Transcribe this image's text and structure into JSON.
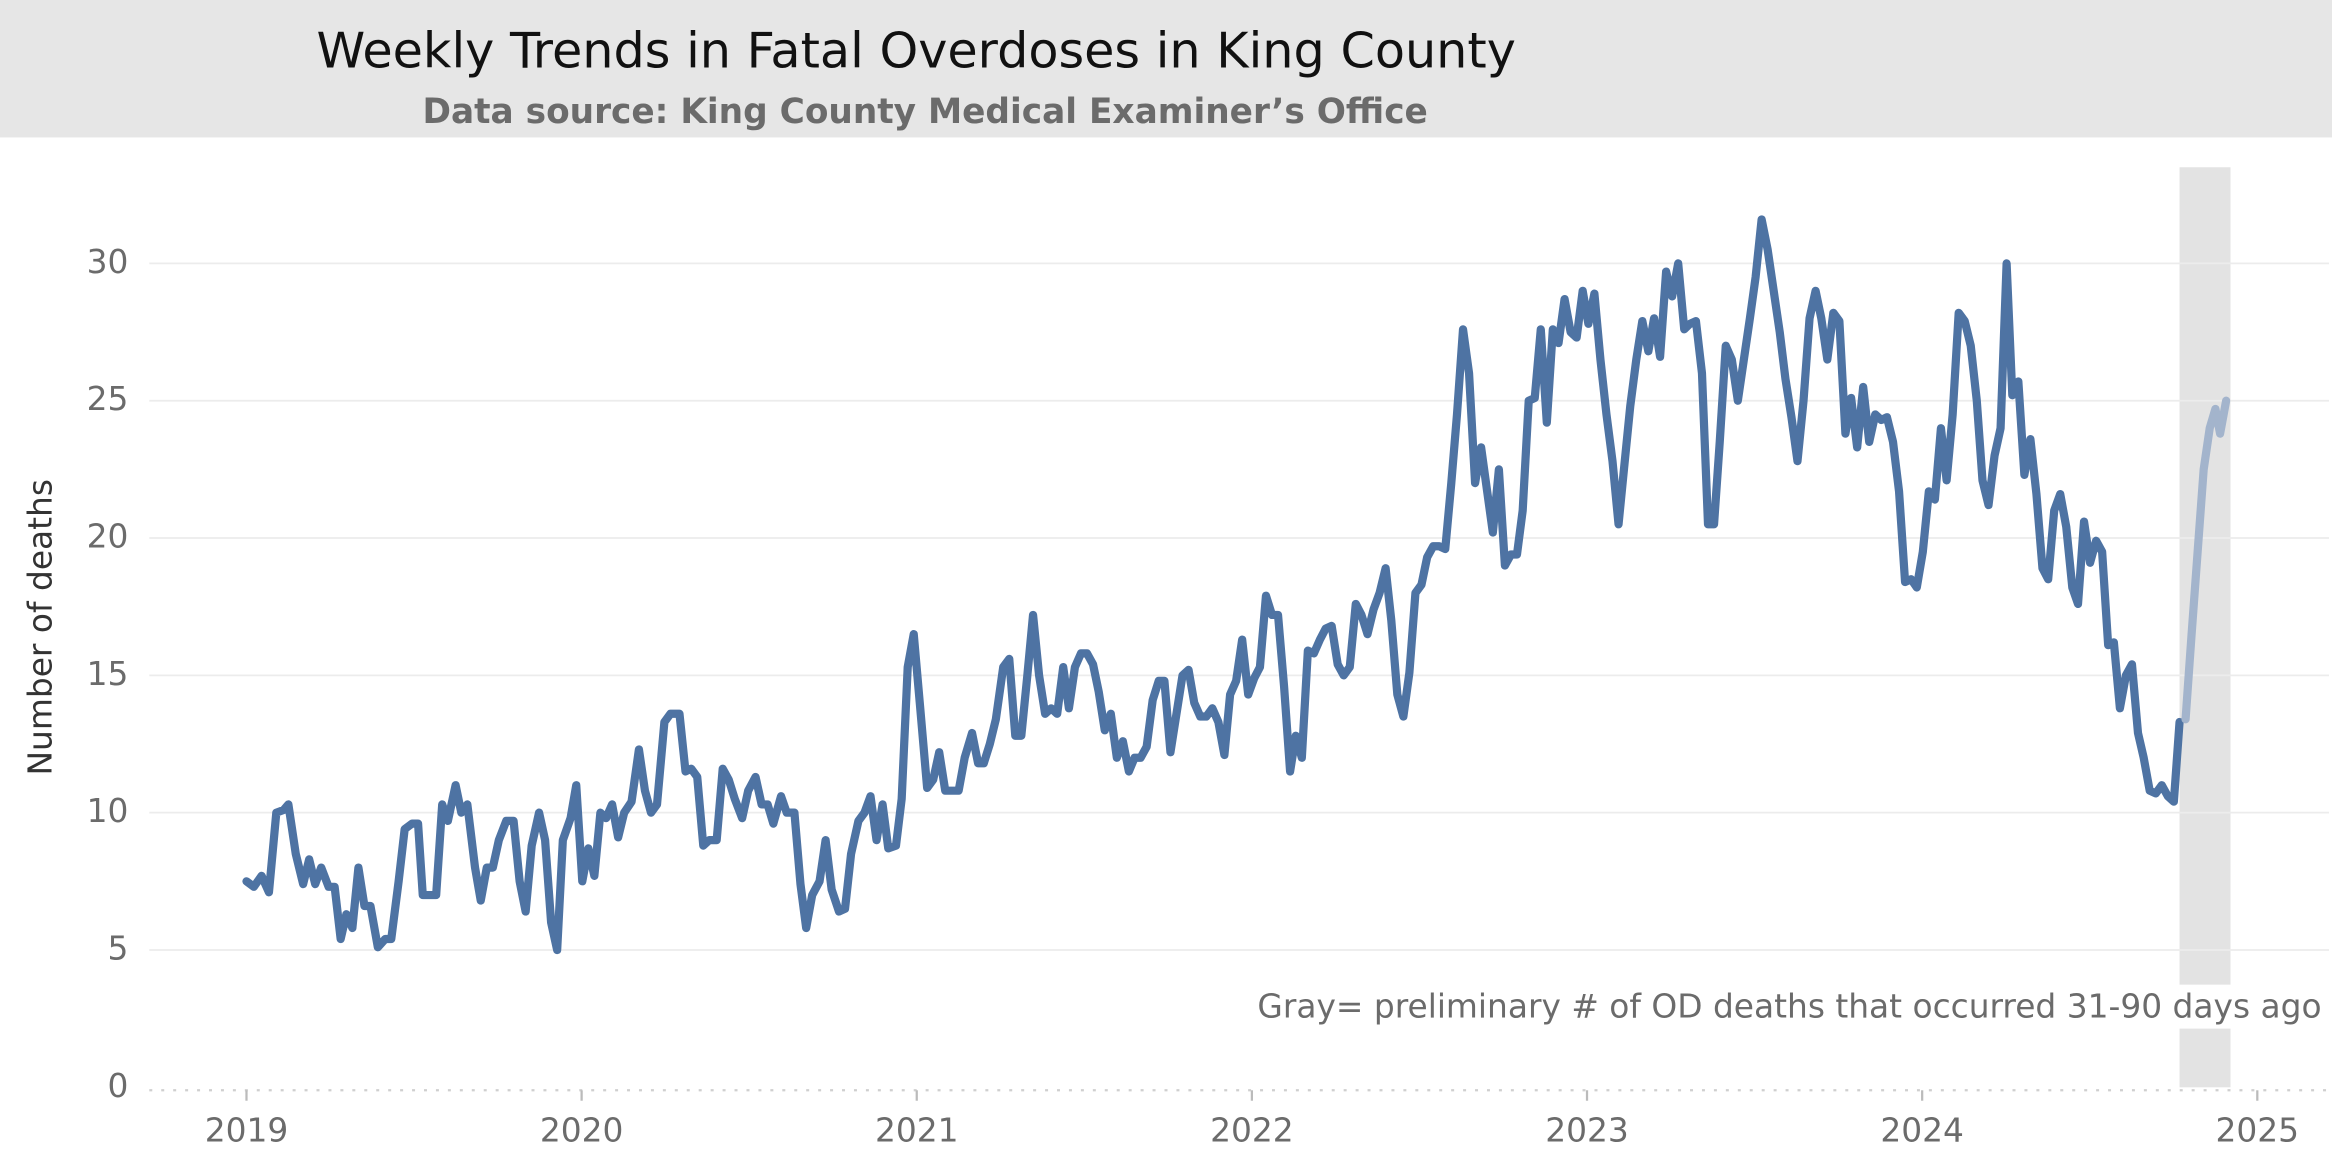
{
  "chart_data": {
    "type": "line",
    "title": "Weekly Trends in Fatal Overdoses in King County",
    "subtitle": "Data source: King County Medical Examiner’s Office",
    "y_label": "Number of deaths",
    "annotation": "Gray= preliminary # of OD deaths that occurred 31-90 days ago",
    "highlight": [
      2024.768,
      2024.92
    ],
    "highlight_color": "#e3e3e3",
    "xlim": [
      2018.71,
      2025.214
    ],
    "xticks": [
      2019,
      2020,
      2021,
      2022,
      2023,
      2024,
      2025
    ],
    "ylim": [
      0,
      33.5
    ],
    "yticks": [
      0,
      5,
      10,
      15,
      20,
      25,
      30
    ],
    "grid": true,
    "series": [
      {
        "color": "#4e73a3",
        "x": [
          2019.0,
          2019.022,
          2019.045,
          2019.067,
          2019.089,
          2019.111,
          2019.125,
          2019.147,
          2019.169,
          2019.187,
          2019.205,
          2019.223,
          2019.245,
          2019.263,
          2019.281,
          2019.298,
          2019.316,
          2019.334,
          2019.352,
          2019.37,
          2019.392,
          2019.414,
          2019.432,
          2019.454,
          2019.472,
          2019.494,
          2019.512,
          2019.526,
          2019.548,
          2019.566,
          2019.584,
          2019.601,
          2019.624,
          2019.641,
          2019.659,
          2019.682,
          2019.699,
          2019.717,
          2019.735,
          2019.753,
          2019.775,
          2019.797,
          2019.815,
          2019.833,
          2019.851,
          2019.873,
          2019.891,
          2019.909,
          2019.927,
          2019.944,
          2019.967,
          2019.984,
          2020.002,
          2020.02,
          2020.038,
          2020.056,
          2020.073,
          2020.091,
          2020.109,
          2020.127,
          2020.149,
          2020.171,
          2020.189,
          2020.207,
          2020.225,
          2020.247,
          2020.265,
          2020.292,
          2020.31,
          2020.327,
          2020.345,
          2020.363,
          2020.381,
          2020.403,
          2020.421,
          2020.439,
          2020.457,
          2020.479,
          2020.497,
          2020.519,
          2020.537,
          2020.555,
          2020.572,
          2020.595,
          2020.612,
          2020.635,
          2020.653,
          2020.67,
          2020.688,
          2020.71,
          2020.728,
          2020.746,
          2020.768,
          2020.786,
          2020.804,
          2020.826,
          2020.844,
          2020.862,
          2020.88,
          2020.898,
          2020.915,
          2020.938,
          2020.955,
          2020.973,
          2020.991,
          2021.009,
          2021.031,
          2021.049,
          2021.067,
          2021.085,
          2021.107,
          2021.125,
          2021.143,
          2021.165,
          2021.183,
          2021.2,
          2021.218,
          2021.236,
          2021.258,
          2021.276,
          2021.294,
          2021.312,
          2021.33,
          2021.347,
          2021.365,
          2021.383,
          2021.401,
          2021.419,
          2021.437,
          2021.454,
          2021.472,
          2021.49,
          2021.508,
          2021.526,
          2021.543,
          2021.561,
          2021.579,
          2021.597,
          2021.615,
          2021.633,
          2021.65,
          2021.668,
          2021.686,
          2021.704,
          2021.722,
          2021.739,
          2021.757,
          2021.775,
          2021.793,
          2021.811,
          2021.828,
          2021.846,
          2021.864,
          2021.882,
          2021.9,
          2021.918,
          2021.935,
          2021.953,
          2021.971,
          2021.989,
          2022.007,
          2022.024,
          2022.042,
          2022.06,
          2022.078,
          2022.096,
          2022.114,
          2022.131,
          2022.149,
          2022.167,
          2022.185,
          2022.203,
          2022.22,
          2022.238,
          2022.256,
          2022.274,
          2022.292,
          2022.31,
          2022.327,
          2022.345,
          2022.363,
          2022.381,
          2022.399,
          2022.416,
          2022.434,
          2022.452,
          2022.47,
          2022.488,
          2022.506,
          2022.523,
          2022.541,
          2022.559,
          2022.577,
          2022.595,
          2022.612,
          2022.63,
          2022.648,
          2022.666,
          2022.684,
          2022.702,
          2022.719,
          2022.737,
          2022.755,
          2022.773,
          2022.791,
          2022.808,
          2022.826,
          2022.844,
          2022.862,
          2022.88,
          2022.898,
          2022.915,
          2022.933,
          2022.951,
          2022.969,
          2022.987,
          2023.004,
          2023.022,
          2023.04,
          2023.058,
          2023.076,
          2023.094,
          2023.111,
          2023.129,
          2023.147,
          2023.165,
          2023.183,
          2023.2,
          2023.218,
          2023.236,
          2023.254,
          2023.272,
          2023.29,
          2023.307,
          2023.325,
          2023.343,
          2023.361,
          2023.379,
          2023.396,
          2023.414,
          2023.432,
          2023.45,
          2023.468,
          2023.486,
          2023.503,
          2023.521,
          2023.539,
          2023.557,
          2023.575,
          2023.592,
          2023.61,
          2023.628,
          2023.646,
          2023.664,
          2023.682,
          2023.699,
          2023.717,
          2023.735,
          2023.753,
          2023.771,
          2023.788,
          2023.806,
          2023.824,
          2023.842,
          2023.86,
          2023.878,
          2023.895,
          2023.913,
          2023.931,
          2023.949,
          2023.967,
          2023.984,
          2024.002,
          2024.02,
          2024.038,
          2024.056,
          2024.073,
          2024.091,
          2024.109,
          2024.127,
          2024.145,
          2024.163,
          2024.18,
          2024.198,
          2024.216,
          2024.234,
          2024.252,
          2024.269,
          2024.287,
          2024.305,
          2024.323,
          2024.341,
          2024.359,
          2024.376,
          2024.394,
          2024.412,
          2024.43,
          2024.448,
          2024.465,
          2024.483,
          2024.501,
          2024.519,
          2024.537,
          2024.555,
          2024.572,
          2024.59,
          2024.608,
          2024.626,
          2024.644,
          2024.661,
          2024.679,
          2024.697,
          2024.715,
          2024.733,
          2024.751,
          2024.768
        ],
        "values": [
          7.5,
          7.3,
          7.7,
          7.1,
          10.0,
          10.1,
          10.3,
          8.5,
          7.4,
          8.3,
          7.4,
          8.0,
          7.3,
          7.3,
          5.4,
          6.3,
          5.8,
          8.0,
          6.6,
          6.6,
          5.1,
          5.4,
          5.4,
          7.5,
          9.4,
          9.6,
          9.6,
          7.0,
          7.0,
          7.0,
          10.3,
          9.7,
          11.0,
          10.0,
          10.3,
          8.0,
          6.8,
          8.0,
          8.0,
          9.0,
          9.7,
          9.7,
          7.5,
          6.4,
          8.8,
          10.0,
          9.0,
          6.0,
          5.0,
          9.0,
          9.8,
          11.0,
          7.5,
          8.7,
          7.7,
          10.0,
          9.8,
          10.3,
          9.1,
          10.0,
          10.4,
          12.3,
          10.8,
          10.0,
          10.3,
          13.3,
          13.6,
          13.6,
          11.5,
          11.6,
          11.3,
          8.8,
          9.0,
          9.0,
          11.6,
          11.2,
          10.5,
          9.8,
          10.8,
          11.3,
          10.3,
          10.3,
          9.6,
          10.6,
          10.0,
          10.0,
          7.4,
          5.8,
          7.0,
          7.5,
          9.0,
          7.2,
          6.4,
          6.5,
          8.5,
          9.7,
          10.0,
          10.6,
          9.0,
          10.3,
          8.7,
          8.8,
          10.5,
          15.3,
          16.5,
          14.0,
          10.9,
          11.2,
          12.2,
          10.8,
          10.8,
          10.8,
          12.0,
          12.9,
          11.8,
          11.8,
          12.5,
          13.4,
          15.3,
          15.6,
          12.8,
          12.8,
          15.0,
          17.2,
          15.0,
          13.6,
          13.8,
          13.6,
          15.3,
          13.8,
          15.3,
          15.8,
          15.8,
          15.4,
          14.4,
          13.0,
          13.6,
          12.0,
          12.6,
          11.5,
          12.0,
          12.0,
          12.4,
          14.1,
          14.8,
          14.8,
          12.2,
          13.6,
          15.0,
          15.2,
          14.0,
          13.5,
          13.5,
          13.8,
          13.3,
          12.1,
          14.3,
          14.8,
          16.3,
          14.3,
          14.9,
          15.3,
          17.9,
          17.2,
          17.2,
          14.6,
          11.5,
          12.8,
          12.0,
          15.9,
          15.8,
          16.3,
          16.7,
          16.8,
          15.4,
          15.0,
          15.3,
          17.6,
          17.2,
          16.5,
          17.4,
          18.0,
          18.9,
          17.0,
          14.3,
          13.5,
          15.1,
          18.0,
          18.3,
          19.3,
          19.7,
          19.7,
          19.6,
          22.0,
          24.5,
          27.6,
          26.0,
          22.0,
          23.3,
          21.7,
          20.2,
          22.5,
          19.0,
          19.4,
          19.4,
          21.0,
          25.0,
          25.1,
          27.6,
          24.2,
          27.6,
          27.1,
          28.7,
          27.5,
          27.3,
          29.0,
          27.8,
          28.9,
          26.5,
          24.5,
          22.8,
          20.5,
          22.6,
          24.8,
          26.5,
          27.9,
          26.8,
          28.0,
          26.6,
          29.7,
          28.8,
          30.0,
          27.6,
          27.8,
          27.9,
          26.0,
          20.5,
          20.5,
          23.5,
          27.0,
          26.5,
          25.0,
          26.5,
          28.0,
          29.5,
          31.6,
          30.5,
          29.0,
          27.5,
          25.8,
          24.4,
          22.8,
          25.0,
          28.0,
          29.0,
          28.0,
          26.5,
          28.2,
          27.9,
          23.8,
          25.1,
          23.3,
          25.5,
          23.5,
          24.5,
          24.3,
          24.4,
          23.5,
          21.7,
          18.4,
          18.5,
          18.2,
          19.5,
          21.7,
          21.4,
          24.0,
          22.1,
          24.5,
          28.2,
          27.9,
          27.0,
          25.0,
          22.1,
          21.2,
          23.0,
          24.0,
          30.0,
          25.2,
          25.7,
          22.3,
          23.6,
          21.6,
          18.9,
          18.5,
          21.0,
          21.6,
          20.4,
          18.2,
          17.6,
          20.6,
          19.1,
          19.9,
          19.5,
          16.1,
          16.2,
          13.8,
          15.0,
          15.4,
          12.9,
          12.0,
          10.8,
          10.7,
          11.0,
          10.6,
          10.4,
          13.3
        ]
      },
      {
        "color": "#a3b4cc",
        "x": [
          2024.786,
          2024.804,
          2024.822,
          2024.84,
          2024.858,
          2024.875,
          2024.889,
          2024.907
        ],
        "values": [
          13.4,
          16.5,
          19.5,
          22.5,
          24.0,
          24.7,
          23.8,
          25.0
        ]
      }
    ]
  }
}
